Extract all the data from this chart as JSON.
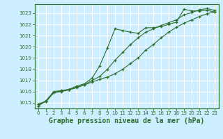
{
  "background_color": "#cceeff",
  "grid_color": "#ffffff",
  "line_color": "#2d6e2d",
  "marker": "+",
  "title": "Graphe pression niveau de la mer (hPa)",
  "title_fontsize": 7.0,
  "xlim": [
    -0.5,
    23.5
  ],
  "ylim": [
    1014.5,
    1023.8
  ],
  "yticks": [
    1015,
    1016,
    1017,
    1018,
    1019,
    1020,
    1021,
    1022,
    1023
  ],
  "xticks": [
    0,
    1,
    2,
    3,
    4,
    5,
    6,
    7,
    8,
    9,
    10,
    11,
    12,
    13,
    14,
    15,
    16,
    17,
    18,
    19,
    20,
    21,
    22,
    23
  ],
  "series1": [
    1014.7,
    1015.2,
    1016.0,
    1016.1,
    1016.2,
    1016.5,
    1016.7,
    1017.2,
    1018.3,
    1019.9,
    1021.6,
    1021.45,
    1021.3,
    1021.2,
    1021.7,
    1021.7,
    1021.8,
    1022.0,
    1022.2,
    1023.35,
    1023.2,
    1023.2,
    1023.25,
    1023.1
  ],
  "series2": [
    1014.85,
    1015.1,
    1015.9,
    1016.0,
    1016.15,
    1016.35,
    1016.6,
    1017.0,
    1017.35,
    1018.0,
    1018.8,
    1019.5,
    1020.2,
    1020.8,
    1021.3,
    1021.6,
    1021.9,
    1022.15,
    1022.4,
    1022.85,
    1023.05,
    1023.3,
    1023.4,
    1023.25
  ],
  "series3": [
    1014.9,
    1015.15,
    1015.95,
    1016.05,
    1016.2,
    1016.4,
    1016.6,
    1016.85,
    1017.1,
    1017.3,
    1017.6,
    1018.0,
    1018.5,
    1019.0,
    1019.7,
    1020.2,
    1020.8,
    1021.3,
    1021.75,
    1022.1,
    1022.4,
    1022.7,
    1022.95,
    1023.1
  ]
}
